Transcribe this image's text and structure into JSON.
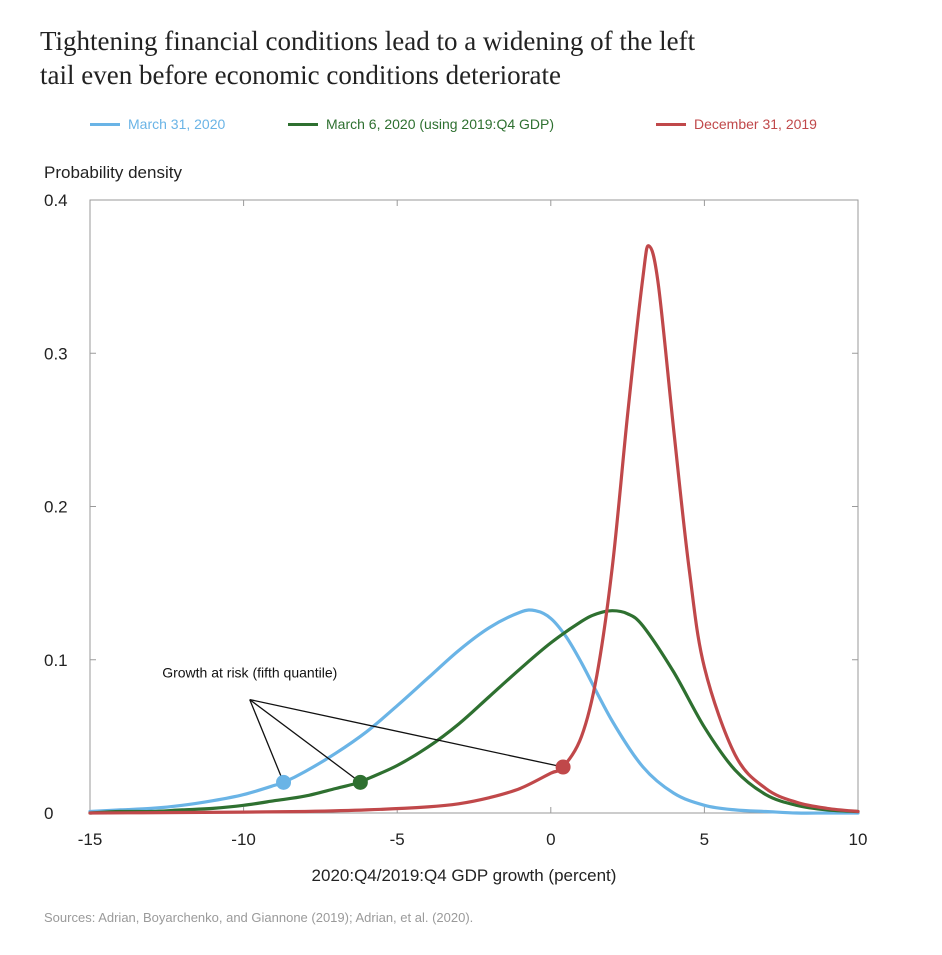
{
  "title_lines": [
    "Tightening financial conditions lead to a widening of the left",
    "tail even before economic conditions deteriorate"
  ],
  "sources": "Sources: Adrian, Boyarchenko, and Giannone (2019);  Adrian, et al. (2020).",
  "chart_data": {
    "type": "line",
    "title": "Tightening financial conditions lead to a widening of the left tail even before economic conditions deteriorate",
    "xlabel": "2020:Q4/2019:Q4 GDP growth (percent)",
    "ylabel": "Probability density",
    "xlim": [
      -15,
      10
    ],
    "ylim": [
      0,
      0.4
    ],
    "x_ticks": [
      -15,
      -10,
      -5,
      0,
      5,
      10
    ],
    "x_tick_labels": [
      "-15",
      "-10",
      "-5",
      "0",
      "5",
      "10"
    ],
    "y_ticks": [
      0,
      0.1,
      0.2,
      0.3,
      0.4
    ],
    "y_tick_labels": [
      "0",
      "0.1",
      "0.2",
      "0.3",
      "0.4"
    ],
    "grid": false,
    "legend_position": "top",
    "series": [
      {
        "name": "March 31, 2020",
        "color": "#6ab4e6",
        "x": [
          -15,
          -14,
          -13,
          -12,
          -11,
          -10,
          -9,
          -8.7,
          -8,
          -7,
          -6,
          -5,
          -4,
          -3,
          -2,
          -1,
          -0.5,
          0,
          0.5,
          1,
          2,
          3,
          4,
          5,
          6,
          7,
          8,
          9,
          10
        ],
        "y": [
          0.001,
          0.002,
          0.003,
          0.005,
          0.008,
          0.012,
          0.018,
          0.02,
          0.027,
          0.039,
          0.053,
          0.07,
          0.088,
          0.106,
          0.121,
          0.131,
          0.132,
          0.127,
          0.115,
          0.098,
          0.06,
          0.03,
          0.013,
          0.005,
          0.002,
          0.001,
          0,
          0,
          0
        ]
      },
      {
        "name": "March 6, 2020 (using 2019:Q4 GDP)",
        "color": "#2e7030",
        "x": [
          -15,
          -14,
          -13,
          -12,
          -11,
          -10,
          -9,
          -8,
          -7,
          -6.2,
          -6,
          -5,
          -4,
          -3,
          -2,
          -1,
          0,
          1,
          1.5,
          2,
          2.5,
          3,
          4,
          5,
          6,
          7,
          8,
          9,
          10
        ],
        "y": [
          0,
          0.001,
          0.001,
          0.002,
          0.003,
          0.005,
          0.008,
          0.011,
          0.016,
          0.02,
          0.022,
          0.031,
          0.043,
          0.058,
          0.076,
          0.094,
          0.111,
          0.125,
          0.13,
          0.132,
          0.13,
          0.122,
          0.092,
          0.056,
          0.028,
          0.012,
          0.005,
          0.002,
          0.001
        ]
      },
      {
        "name": "December 31, 2019",
        "color": "#c0484a",
        "x": [
          -15,
          -12,
          -10,
          -8,
          -6,
          -4,
          -3,
          -2,
          -1,
          0,
          0.4,
          1,
          1.5,
          2,
          2.5,
          3,
          3.2,
          3.5,
          4,
          4.5,
          5,
          6,
          7,
          8,
          9,
          10
        ],
        "y": [
          0,
          0.0003,
          0.0006,
          0.001,
          0.002,
          0.004,
          0.006,
          0.01,
          0.016,
          0.026,
          0.03,
          0.05,
          0.09,
          0.16,
          0.26,
          0.35,
          0.37,
          0.345,
          0.25,
          0.16,
          0.095,
          0.038,
          0.016,
          0.007,
          0.003,
          0.001
        ]
      }
    ],
    "markers": [
      {
        "series": "March 31, 2020",
        "x": -8.7,
        "y": 0.02,
        "color": "#6ab4e6"
      },
      {
        "series": "March 6, 2020 (using 2019:Q4 GDP)",
        "x": -6.2,
        "y": 0.02,
        "color": "#2e7030"
      },
      {
        "series": "December 31, 2019",
        "x": 0.4,
        "y": 0.03,
        "color": "#c0484a"
      }
    ],
    "annotations": [
      {
        "text": "Growth at risk (fifth quantile)",
        "anchor_x": -9.8,
        "anchor_y": 0.074
      }
    ]
  }
}
